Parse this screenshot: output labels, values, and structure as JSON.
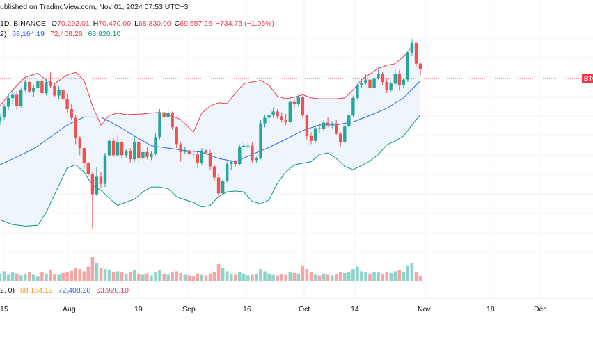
{
  "header": {
    "published": "ublished on TradingView.com, Nov 01, 2024 07:53 UTC+3",
    "symbol": "1D, BINANCE",
    "open_label": "O",
    "open": "70,292.01",
    "high_label": "H",
    "high": "70,470.00",
    "low_label": "L",
    "low": "68,830.00",
    "close_label": "C",
    "close": "69,557.26",
    "change": "−734.75 (−1.05%)"
  },
  "bb_legend": {
    "prefix": "2)",
    "basis": "68,164.19",
    "upper": "72,408.28",
    "lower": "63,920.10"
  },
  "vol_legend": {
    "prefix": "2, 0)",
    "basis": "68,164.19",
    "upper": "72,408.28",
    "lower": "63,920.10"
  },
  "price_tag": "BTC",
  "colors": {
    "up": "#26a69a",
    "down": "#ef5350",
    "basis": "#2962ff",
    "upper": "#f23645",
    "lower": "#089981",
    "band_fill": "#eef5fd"
  },
  "chart_data": {
    "type": "candlestick",
    "series_unit": "BTC/USDT daily candles",
    "x_axis_labels": [
      "15",
      "Aug",
      "19",
      "Sep",
      "16",
      "Oct",
      "14",
      "Nov",
      "18",
      "Dec"
    ],
    "y_range": [
      49500,
      73500
    ],
    "candles": [
      [
        63100,
        64000,
        62600,
        63600
      ],
      [
        63600,
        65200,
        63300,
        64900
      ],
      [
        64900,
        66500,
        64500,
        66000
      ],
      [
        66000,
        67100,
        65300,
        66400
      ],
      [
        66400,
        66900,
        64500,
        65000
      ],
      [
        65000,
        67200,
        64800,
        67000
      ],
      [
        67000,
        68300,
        66800,
        68000
      ],
      [
        68000,
        68100,
        66600,
        66800
      ],
      [
        66800,
        67600,
        66100,
        67300
      ],
      [
        67300,
        68600,
        67000,
        68100
      ],
      [
        68100,
        68700,
        66200,
        66600
      ],
      [
        66600,
        68500,
        66300,
        68000
      ],
      [
        68000,
        69200,
        67300,
        67500
      ],
      [
        67500,
        67800,
        66100,
        66300
      ],
      [
        66300,
        67500,
        65800,
        67000
      ],
      [
        67000,
        67300,
        65500,
        65900
      ],
      [
        65900,
        66500,
        64200,
        64600
      ],
      [
        64600,
        65300,
        63200,
        63500
      ],
      [
        63500,
        63900,
        60200,
        61000
      ],
      [
        61000,
        61200,
        58800,
        59700
      ],
      [
        59700,
        59900,
        57100,
        57800
      ],
      [
        57800,
        58000,
        56100,
        56400
      ],
      [
        56400,
        56700,
        49600,
        53900
      ],
      [
        53900,
        57300,
        53700,
        56100
      ],
      [
        56100,
        56700,
        54700,
        55200
      ],
      [
        55200,
        59100,
        54800,
        58800
      ],
      [
        58800,
        60800,
        58600,
        60600
      ],
      [
        60600,
        61000,
        58600,
        58800
      ],
      [
        58800,
        61300,
        58600,
        60400
      ],
      [
        60400,
        60800,
        58300,
        58800
      ],
      [
        58800,
        59600,
        58400,
        59300
      ],
      [
        59300,
        59700,
        57800,
        58300
      ],
      [
        58300,
        61100,
        58000,
        60500
      ],
      [
        60500,
        60900,
        57800,
        58400
      ],
      [
        58400,
        59700,
        58000,
        59200
      ],
      [
        59200,
        59900,
        58300,
        58600
      ],
      [
        58600,
        59300,
        58200,
        59000
      ],
      [
        59000,
        61600,
        58800,
        61100
      ],
      [
        61100,
        64600,
        60800,
        64200
      ],
      [
        64200,
        64500,
        63000,
        63600
      ],
      [
        63600,
        64700,
        63400,
        64100
      ],
      [
        64100,
        64300,
        62000,
        62300
      ],
      [
        62300,
        62500,
        59700,
        60200
      ],
      [
        60200,
        60500,
        58000,
        59200
      ],
      [
        59200,
        59900,
        58900,
        59300
      ],
      [
        59300,
        59500,
        58800,
        59000
      ],
      [
        59000,
        59600,
        58500,
        58900
      ],
      [
        58900,
        59300,
        57200,
        57800
      ],
      [
        57800,
        59700,
        57500,
        59400
      ],
      [
        59400,
        59600,
        58900,
        59100
      ],
      [
        59100,
        59500,
        56900,
        57400
      ],
      [
        57400,
        57600,
        55600,
        56000
      ],
      [
        56000,
        56500,
        53700,
        54000
      ],
      [
        54000,
        55800,
        53900,
        55600
      ],
      [
        55600,
        58000,
        55400,
        57700
      ],
      [
        57700,
        58200,
        56900,
        58000
      ],
      [
        58000,
        58200,
        57400,
        57700
      ],
      [
        57700,
        60100,
        57500,
        59800
      ],
      [
        59800,
        60400,
        59200,
        60000
      ],
      [
        60000,
        60500,
        59600,
        60000
      ],
      [
        60000,
        60500,
        57900,
        58200
      ],
      [
        58200,
        58600,
        57800,
        58500
      ],
      [
        58500,
        63200,
        58300,
        62800
      ],
      [
        62800,
        63900,
        62300,
        63500
      ],
      [
        63500,
        64100,
        63000,
        63800
      ],
      [
        63800,
        64800,
        63500,
        64300
      ],
      [
        64300,
        64600,
        63400,
        63700
      ],
      [
        63700,
        64200,
        62900,
        63200
      ],
      [
        63200,
        64000,
        62600,
        63000
      ],
      [
        63000,
        65800,
        62700,
        65500
      ],
      [
        65500,
        66100,
        64600,
        65200
      ],
      [
        65200,
        66400,
        64900,
        66100
      ],
      [
        66100,
        66200,
        63500,
        63800
      ],
      [
        63800,
        63900,
        60700,
        61200
      ],
      [
        61200,
        61700,
        60200,
        60600
      ],
      [
        60600,
        62600,
        60300,
        62200
      ],
      [
        62200,
        62800,
        61600,
        62100
      ],
      [
        62100,
        63200,
        61800,
        62900
      ],
      [
        62900,
        63600,
        62300,
        62600
      ],
      [
        62600,
        63100,
        62200,
        62800
      ],
      [
        62800,
        63200,
        61300,
        61500
      ],
      [
        61500,
        61700,
        59900,
        60500
      ],
      [
        60500,
        62800,
        60300,
        62400
      ],
      [
        62400,
        64000,
        62200,
        63800
      ],
      [
        63800,
        66300,
        63600,
        66000
      ],
      [
        66000,
        67800,
        65800,
        67600
      ],
      [
        67600,
        68300,
        67200,
        67900
      ],
      [
        67900,
        69000,
        67700,
        68300
      ],
      [
        68300,
        68800,
        67000,
        67300
      ],
      [
        67300,
        68900,
        67000,
        68500
      ],
      [
        68500,
        69500,
        68300,
        69000
      ],
      [
        69000,
        69300,
        67600,
        68000
      ],
      [
        68000,
        68500,
        66600,
        67000
      ],
      [
        67000,
        68000,
        66800,
        67800
      ],
      [
        67800,
        69700,
        67500,
        69000
      ],
      [
        69000,
        69500,
        66900,
        67600
      ],
      [
        67600,
        68500,
        67300,
        68300
      ],
      [
        68300,
        71900,
        68000,
        71700
      ],
      [
        71700,
        73400,
        71300,
        72900
      ],
      [
        72900,
        73000,
        69800,
        70300
      ],
      [
        70300,
        70500,
        68800,
        69600
      ]
    ],
    "basis": [
      [
        0,
        57600
      ],
      [
        4,
        58600
      ],
      [
        8,
        59600
      ],
      [
        12,
        61100
      ],
      [
        16,
        62600
      ],
      [
        20,
        63600
      ],
      [
        24,
        63600
      ],
      [
        28,
        62500
      ],
      [
        32,
        61200
      ],
      [
        36,
        60000
      ],
      [
        40,
        59700
      ],
      [
        44,
        59400
      ],
      [
        48,
        59200
      ],
      [
        52,
        58400
      ],
      [
        56,
        58000
      ],
      [
        60,
        58900
      ],
      [
        64,
        59800
      ],
      [
        68,
        60800
      ],
      [
        72,
        61900
      ],
      [
        76,
        62600
      ],
      [
        80,
        62600
      ],
      [
        84,
        63000
      ],
      [
        88,
        63800
      ],
      [
        92,
        64700
      ],
      [
        96,
        66000
      ],
      [
        100,
        68170
      ]
    ],
    "upper": [
      [
        0,
        65000
      ],
      [
        3,
        67000
      ],
      [
        6,
        68600
      ],
      [
        9,
        69100
      ],
      [
        11,
        68200
      ],
      [
        13,
        67800
      ],
      [
        16,
        68900
      ],
      [
        18,
        69200
      ],
      [
        20,
        68200
      ],
      [
        22,
        65000
      ],
      [
        24,
        62600
      ],
      [
        26,
        63800
      ],
      [
        28,
        64100
      ],
      [
        30,
        63900
      ],
      [
        34,
        64000
      ],
      [
        38,
        64200
      ],
      [
        40,
        63900
      ],
      [
        43,
        63300
      ],
      [
        46,
        61700
      ],
      [
        48,
        64100
      ],
      [
        50,
        65000
      ],
      [
        52,
        65400
      ],
      [
        54,
        65300
      ],
      [
        56,
        66600
      ],
      [
        58,
        67800
      ],
      [
        60,
        68000
      ],
      [
        62,
        68200
      ],
      [
        64,
        67600
      ],
      [
        66,
        66200
      ],
      [
        68,
        65900
      ],
      [
        70,
        66100
      ],
      [
        72,
        66400
      ],
      [
        74,
        66000
      ],
      [
        76,
        65900
      ],
      [
        78,
        65900
      ],
      [
        80,
        65900
      ],
      [
        82,
        66000
      ],
      [
        84,
        67000
      ],
      [
        86,
        68300
      ],
      [
        88,
        69000
      ],
      [
        90,
        69700
      ],
      [
        92,
        70100
      ],
      [
        94,
        70300
      ],
      [
        96,
        71200
      ],
      [
        98,
        72400
      ],
      [
        100,
        72410
      ]
    ],
    "lower": [
      [
        0,
        50700
      ],
      [
        3,
        50100
      ],
      [
        6,
        49900
      ],
      [
        9,
        50000
      ],
      [
        11,
        51600
      ],
      [
        13,
        53900
      ],
      [
        16,
        57200
      ],
      [
        18,
        57600
      ],
      [
        20,
        56700
      ],
      [
        22,
        55000
      ],
      [
        24,
        54400
      ],
      [
        26,
        53400
      ],
      [
        28,
        52500
      ],
      [
        30,
        52900
      ],
      [
        32,
        53300
      ],
      [
        34,
        54200
      ],
      [
        36,
        54800
      ],
      [
        38,
        54800
      ],
      [
        40,
        54600
      ],
      [
        42,
        53600
      ],
      [
        44,
        53200
      ],
      [
        46,
        52900
      ],
      [
        48,
        52300
      ],
      [
        50,
        52500
      ],
      [
        52,
        53600
      ],
      [
        54,
        54200
      ],
      [
        56,
        54300
      ],
      [
        58,
        54200
      ],
      [
        60,
        53000
      ],
      [
        62,
        52700
      ],
      [
        64,
        53200
      ],
      [
        66,
        55300
      ],
      [
        68,
        56700
      ],
      [
        70,
        57600
      ],
      [
        72,
        57800
      ],
      [
        74,
        58000
      ],
      [
        76,
        58900
      ],
      [
        78,
        59100
      ],
      [
        80,
        58400
      ],
      [
        82,
        57400
      ],
      [
        84,
        57000
      ],
      [
        86,
        57500
      ],
      [
        88,
        58100
      ],
      [
        90,
        58900
      ],
      [
        92,
        60100
      ],
      [
        94,
        60600
      ],
      [
        96,
        61200
      ],
      [
        98,
        62600
      ],
      [
        100,
        63920
      ]
    ],
    "volume": [
      12,
      16,
      10,
      14,
      12,
      9,
      11,
      15,
      10,
      8,
      14,
      12,
      18,
      11,
      10,
      13,
      15,
      17,
      22,
      20,
      16,
      24,
      40,
      30,
      22,
      20,
      18,
      15,
      16,
      14,
      12,
      15,
      18,
      11,
      10,
      12,
      9,
      14,
      18,
      12,
      10,
      14,
      16,
      13,
      10,
      9,
      8,
      12,
      10,
      9,
      12,
      15,
      28,
      22,
      16,
      12,
      10,
      14,
      12,
      9,
      10,
      11,
      20,
      16,
      12,
      10,
      9,
      11,
      10,
      15,
      13,
      12,
      25,
      20,
      14,
      10,
      9,
      12,
      10,
      9,
      11,
      14,
      13,
      15,
      20,
      24,
      16,
      14,
      12,
      15,
      14,
      12,
      15,
      13,
      16,
      18,
      14,
      25,
      30,
      14,
      8
    ],
    "grid": true
  }
}
